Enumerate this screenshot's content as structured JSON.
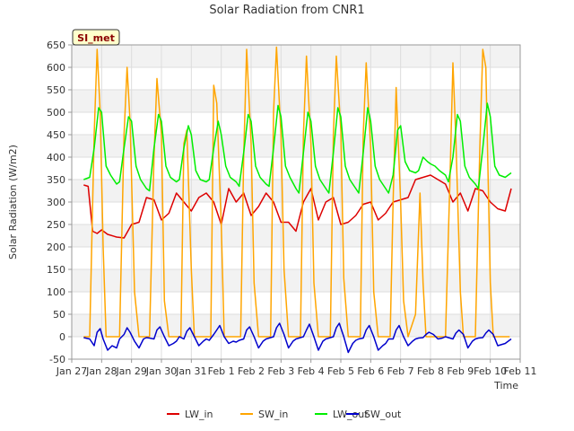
{
  "chart_data": {
    "type": "line",
    "title": "Solar Radiation from CNR1",
    "badge": "SI_met",
    "xlabel": "Time",
    "ylabel": "Solar Radiation (W/m2)",
    "ylim": [
      -50,
      650
    ],
    "yticks": [
      -50,
      0,
      50,
      100,
      150,
      200,
      250,
      300,
      350,
      400,
      450,
      500,
      550,
      600,
      650
    ],
    "xlim": [
      0,
      15
    ],
    "xticks": [
      {
        "day": 0,
        "label": "Jan 27"
      },
      {
        "day": 1,
        "label": "Jan 28"
      },
      {
        "day": 2,
        "label": "Jan 29"
      },
      {
        "day": 3,
        "label": "Jan 30"
      },
      {
        "day": 4,
        "label": "Jan 31"
      },
      {
        "day": 5,
        "label": "Feb 1"
      },
      {
        "day": 6,
        "label": "Feb 2"
      },
      {
        "day": 7,
        "label": "Feb 3"
      },
      {
        "day": 8,
        "label": "Feb 4"
      },
      {
        "day": 9,
        "label": "Feb 5"
      },
      {
        "day": 10,
        "label": "Feb 6"
      },
      {
        "day": 11,
        "label": "Feb 7"
      },
      {
        "day": 12,
        "label": "Feb 8"
      },
      {
        "day": 13,
        "label": "Feb 9"
      },
      {
        "day": 14,
        "label": "Feb 10"
      },
      {
        "day": 15,
        "label": "Feb 11"
      }
    ],
    "grid": true,
    "legend_position": "bottom",
    "series": [
      {
        "name": "LW_in",
        "color": "#dd0000",
        "x": [
          0.4,
          0.55,
          0.7,
          0.85,
          1.0,
          1.2,
          1.5,
          1.75,
          2.0,
          2.25,
          2.5,
          2.75,
          3.0,
          3.25,
          3.5,
          3.75,
          4.0,
          4.25,
          4.5,
          4.75,
          5.0,
          5.25,
          5.5,
          5.75,
          6.0,
          6.25,
          6.5,
          6.75,
          7.0,
          7.25,
          7.5,
          7.75,
          8.0,
          8.25,
          8.5,
          8.75,
          9.0,
          9.25,
          9.5,
          9.75,
          10.0,
          10.25,
          10.5,
          10.75,
          11.0,
          11.25,
          11.5,
          11.75,
          12.0,
          12.25,
          12.5,
          12.75,
          13.0,
          13.25,
          13.5,
          13.75,
          14.0,
          14.25,
          14.5,
          14.7
        ],
        "y": [
          338,
          335,
          235,
          230,
          238,
          228,
          222,
          220,
          250,
          255,
          310,
          305,
          260,
          275,
          320,
          300,
          280,
          310,
          320,
          300,
          250,
          330,
          300,
          320,
          270,
          290,
          320,
          300,
          255,
          255,
          235,
          300,
          330,
          260,
          300,
          310,
          250,
          255,
          270,
          295,
          300,
          260,
          275,
          300,
          305,
          310,
          350,
          355,
          360,
          350,
          340,
          300,
          320,
          280,
          330,
          325,
          300,
          285,
          280,
          330
        ]
      },
      {
        "name": "SW_in",
        "color": "#ffa500",
        "x": [
          0.4,
          0.6,
          0.75,
          0.85,
          0.95,
          1.05,
          1.15,
          1.25,
          1.5,
          1.6,
          1.75,
          1.85,
          1.95,
          2.1,
          2.25,
          2.5,
          2.6,
          2.75,
          2.85,
          3.0,
          3.1,
          3.25,
          3.5,
          3.65,
          3.75,
          3.85,
          4.0,
          4.1,
          4.25,
          4.5,
          4.65,
          4.75,
          4.85,
          5.0,
          5.1,
          5.25,
          5.5,
          5.65,
          5.75,
          5.85,
          6.0,
          6.1,
          6.25,
          6.5,
          6.65,
          6.75,
          6.85,
          7.0,
          7.1,
          7.25,
          7.5,
          7.65,
          7.75,
          7.85,
          8.0,
          8.1,
          8.25,
          8.5,
          8.65,
          8.75,
          8.85,
          9.0,
          9.1,
          9.25,
          9.5,
          9.65,
          9.75,
          9.85,
          10.0,
          10.1,
          10.25,
          10.5,
          10.65,
          10.75,
          10.85,
          11.0,
          11.1,
          11.25,
          11.5,
          11.65,
          11.75,
          11.85,
          12.0,
          12.1,
          12.25,
          12.5,
          12.65,
          12.75,
          12.85,
          13.0,
          13.1,
          13.25,
          13.5,
          13.65,
          13.75,
          13.85,
          14.0,
          14.1,
          14.25,
          14.5,
          14.65
        ],
        "y": [
          0,
          0,
          450,
          640,
          500,
          200,
          0,
          0,
          0,
          0,
          450,
          600,
          480,
          100,
          0,
          0,
          0,
          400,
          575,
          450,
          80,
          0,
          0,
          0,
          430,
          460,
          150,
          0,
          0,
          0,
          0,
          560,
          520,
          250,
          0,
          0,
          0,
          0,
          400,
          640,
          430,
          120,
          0,
          0,
          0,
          500,
          645,
          450,
          150,
          0,
          0,
          0,
          450,
          625,
          430,
          120,
          0,
          0,
          0,
          450,
          625,
          460,
          130,
          0,
          0,
          0,
          450,
          610,
          420,
          100,
          0,
          0,
          0,
          300,
          555,
          300,
          80,
          0,
          50,
          320,
          120,
          0,
          0,
          0,
          0,
          0,
          350,
          610,
          440,
          100,
          0,
          0,
          0,
          420,
          640,
          600,
          120,
          0,
          0,
          0,
          0
        ]
      },
      {
        "name": "LW_out",
        "color": "#00ee00",
        "x": [
          0.4,
          0.6,
          0.75,
          0.9,
          1.0,
          1.15,
          1.3,
          1.5,
          1.6,
          1.75,
          1.9,
          2.0,
          2.15,
          2.3,
          2.5,
          2.6,
          2.75,
          2.9,
          3.0,
          3.15,
          3.3,
          3.5,
          3.6,
          3.75,
          3.9,
          4.0,
          4.15,
          4.3,
          4.5,
          4.6,
          4.75,
          4.9,
          5.0,
          5.15,
          5.3,
          5.5,
          5.6,
          5.75,
          5.9,
          6.0,
          6.15,
          6.3,
          6.5,
          6.6,
          6.75,
          6.9,
          7.0,
          7.15,
          7.3,
          7.5,
          7.6,
          7.75,
          7.9,
          8.0,
          8.15,
          8.3,
          8.5,
          8.6,
          8.75,
          8.9,
          9.0,
          9.15,
          9.3,
          9.5,
          9.6,
          9.75,
          9.9,
          10.0,
          10.15,
          10.3,
          10.5,
          10.6,
          10.75,
          10.9,
          11.0,
          11.15,
          11.3,
          11.5,
          11.6,
          11.75,
          11.9,
          12.0,
          12.15,
          12.3,
          12.5,
          12.6,
          12.75,
          12.9,
          13.0,
          13.15,
          13.3,
          13.5,
          13.6,
          13.75,
          13.9,
          14.0,
          14.15,
          14.3,
          14.5,
          14.7
        ],
        "y": [
          350,
          355,
          420,
          510,
          500,
          380,
          360,
          340,
          345,
          420,
          490,
          480,
          380,
          350,
          330,
          325,
          420,
          495,
          480,
          380,
          355,
          345,
          350,
          420,
          470,
          450,
          370,
          350,
          345,
          350,
          420,
          480,
          450,
          380,
          355,
          345,
          335,
          410,
          495,
          480,
          380,
          355,
          340,
          335,
          420,
          515,
          490,
          380,
          355,
          330,
          320,
          410,
          500,
          480,
          380,
          350,
          330,
          320,
          410,
          510,
          490,
          380,
          350,
          330,
          320,
          410,
          510,
          480,
          380,
          350,
          330,
          320,
          360,
          460,
          470,
          390,
          370,
          365,
          370,
          400,
          390,
          385,
          380,
          370,
          360,
          345,
          400,
          495,
          480,
          380,
          355,
          340,
          330,
          420,
          520,
          490,
          380,
          360,
          355,
          365
        ]
      },
      {
        "name": "SW_out",
        "color": "#0000cc",
        "x": [
          0.4,
          0.6,
          0.75,
          0.85,
          0.95,
          1.05,
          1.2,
          1.35,
          1.5,
          1.6,
          1.75,
          1.85,
          1.95,
          2.1,
          2.25,
          2.4,
          2.5,
          2.6,
          2.75,
          2.85,
          2.95,
          3.1,
          3.25,
          3.4,
          3.5,
          3.6,
          3.75,
          3.85,
          3.95,
          4.1,
          4.25,
          4.4,
          4.5,
          4.6,
          4.75,
          4.85,
          4.95,
          5.1,
          5.25,
          5.4,
          5.5,
          5.6,
          5.75,
          5.85,
          5.95,
          6.1,
          6.25,
          6.4,
          6.5,
          6.6,
          6.75,
          6.85,
          6.95,
          7.1,
          7.25,
          7.4,
          7.5,
          7.6,
          7.75,
          7.85,
          7.95,
          8.1,
          8.25,
          8.4,
          8.5,
          8.6,
          8.75,
          8.85,
          8.95,
          9.1,
          9.25,
          9.4,
          9.5,
          9.6,
          9.75,
          9.85,
          9.95,
          10.1,
          10.25,
          10.4,
          10.5,
          10.6,
          10.75,
          10.85,
          10.95,
          11.1,
          11.25,
          11.4,
          11.5,
          11.6,
          11.75,
          11.85,
          11.95,
          12.1,
          12.25,
          12.4,
          12.5,
          12.6,
          12.75,
          12.85,
          12.95,
          13.1,
          13.25,
          13.4,
          13.5,
          13.6,
          13.75,
          13.85,
          13.95,
          14.1,
          14.25,
          14.5,
          14.7
        ],
        "y": [
          -2,
          -5,
          -20,
          10,
          18,
          -5,
          -30,
          -20,
          -25,
          -5,
          5,
          20,
          10,
          -10,
          -25,
          -5,
          -2,
          -3,
          -5,
          15,
          22,
          0,
          -20,
          -15,
          -10,
          0,
          -5,
          12,
          20,
          0,
          -20,
          -10,
          -5,
          -8,
          5,
          15,
          25,
          0,
          -15,
          -10,
          -12,
          -8,
          -5,
          15,
          22,
          0,
          -25,
          -10,
          -5,
          -3,
          0,
          20,
          30,
          5,
          -25,
          -10,
          -5,
          -3,
          0,
          15,
          28,
          0,
          -30,
          -10,
          -5,
          -3,
          0,
          20,
          30,
          0,
          -35,
          -15,
          -8,
          -5,
          -3,
          15,
          25,
          0,
          -30,
          -20,
          -15,
          -5,
          -5,
          15,
          25,
          0,
          -20,
          -10,
          -5,
          -3,
          -2,
          5,
          10,
          5,
          -5,
          -3,
          0,
          -2,
          -5,
          8,
          15,
          5,
          -25,
          -10,
          -5,
          -3,
          -2,
          8,
          15,
          5,
          -20,
          -15,
          -5
        ]
      }
    ]
  }
}
